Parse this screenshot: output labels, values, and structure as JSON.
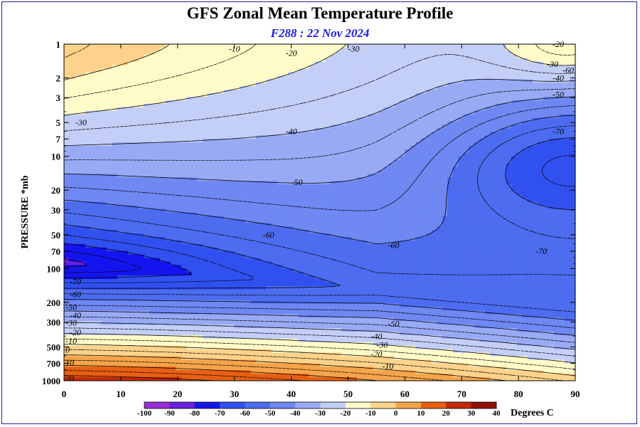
{
  "chart_data": {
    "type": "heatmap",
    "title": "GFS Zonal Mean Temperature Profile",
    "subtitle": "F288 : 22 Nov 2024",
    "xlabel": "",
    "ylabel": "PRESSURE *mb",
    "xlim": [
      0,
      90
    ],
    "ylim": [
      1000,
      1
    ],
    "y_scale": "log",
    "grid": false,
    "x_ticks": [
      0,
      10,
      20,
      30,
      40,
      50,
      60,
      70,
      80,
      90
    ],
    "y_ticks": [
      1,
      2,
      3,
      5,
      7,
      10,
      20,
      30,
      50,
      70,
      100,
      200,
      300,
      500,
      700,
      1000
    ],
    "y_tick_labels": [
      "1",
      "2",
      "3",
      "5",
      "7",
      "10",
      "20",
      "30",
      "50",
      "70",
      "100",
      "200",
      "300",
      "500",
      "700",
      "1000"
    ],
    "colorbar": {
      "label": "Degrees C",
      "levels": [
        -100,
        -90,
        -80,
        -70,
        -60,
        -50,
        -40,
        -30,
        -20,
        -10,
        0,
        10,
        20,
        30,
        40
      ],
      "colors": [
        "#9b2fd6",
        "#6a1fe0",
        "#1414f0",
        "#3050f0",
        "#4d6cf0",
        "#6f88f2",
        "#99aaf5",
        "#c4cff8",
        "#fffbc8",
        "#fdd28a",
        "#f5a44a",
        "#e85f12",
        "#c42a08",
        "#8e1004"
      ]
    },
    "contour_labels": [
      {
        "value": -10,
        "lat": 30,
        "p": 1.1
      },
      {
        "value": -20,
        "lat": 40,
        "p": 1.2
      },
      {
        "value": -30,
        "lat": 51,
        "p": 1.1
      },
      {
        "value": -20,
        "lat": 87,
        "p": 1.0
      },
      {
        "value": -30,
        "lat": 86,
        "p": 1.5
      },
      {
        "value": -40,
        "lat": 87,
        "p": 2.0
      },
      {
        "value": -50,
        "lat": 87,
        "p": 2.8
      },
      {
        "value": -60,
        "lat": 90,
        "p": 1.7
      },
      {
        "value": -30,
        "lat": 3,
        "p": 5.0
      },
      {
        "value": -40,
        "lat": 40,
        "p": 6.0
      },
      {
        "value": -70,
        "lat": 87,
        "p": 6.0
      },
      {
        "value": -50,
        "lat": 41,
        "p": 17
      },
      {
        "value": -60,
        "lat": 36,
        "p": 50
      },
      {
        "value": -60,
        "lat": 58,
        "p": 62
      },
      {
        "value": -70,
        "lat": 84,
        "p": 70
      },
      {
        "value": -70,
        "lat": 1,
        "p": 130
      },
      {
        "value": -60,
        "lat": 1,
        "p": 170
      },
      {
        "value": -50,
        "lat": 0,
        "p": 220
      },
      {
        "value": -40,
        "lat": 1,
        "p": 260
      },
      {
        "value": -30,
        "lat": 0,
        "p": 305
      },
      {
        "value": -20,
        "lat": 1,
        "p": 370
      },
      {
        "value": -10,
        "lat": 0,
        "p": 440
      },
      {
        "value": 0,
        "lat": 0,
        "p": 530
      },
      {
        "value": 10,
        "lat": 0,
        "p": 690
      },
      {
        "value": 20,
        "lat": 0,
        "p": 950
      },
      {
        "value": -50,
        "lat": 58,
        "p": 310
      },
      {
        "value": -40,
        "lat": 55,
        "p": 400
      },
      {
        "value": -30,
        "lat": 56,
        "p": 480
      },
      {
        "value": -20,
        "lat": 55,
        "p": 580
      },
      {
        "value": -10,
        "lat": 57,
        "p": 740
      }
    ]
  }
}
